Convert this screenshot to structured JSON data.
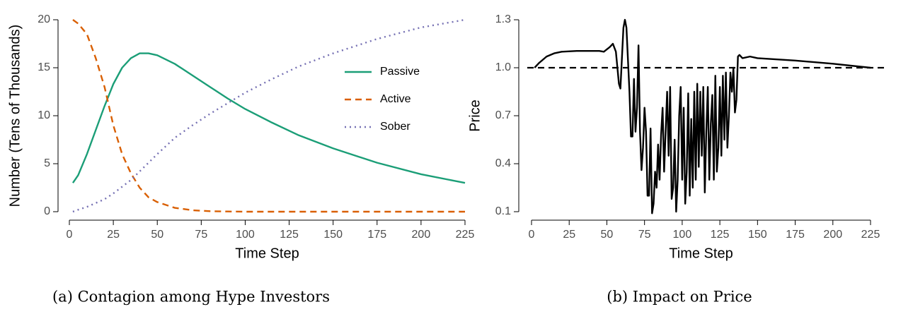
{
  "chart_data": [
    {
      "type": "line",
      "caption": "(a) Contagion among Hype Investors",
      "xlabel": "Time Step",
      "ylabel": "Number (Tens of Thousands)",
      "x": [
        2,
        5,
        10,
        15,
        20,
        25,
        30,
        35,
        40,
        45,
        50,
        60,
        70,
        80,
        90,
        100,
        115,
        130,
        150,
        175,
        200,
        225
      ],
      "series": [
        {
          "name": "Passive",
          "color": "#1b9e77",
          "dash": "solid",
          "values": [
            3,
            3.8,
            6,
            8.5,
            11,
            13.3,
            15,
            16,
            16.5,
            16.5,
            16.3,
            15.4,
            14.2,
            13,
            11.8,
            10.7,
            9.3,
            8,
            6.6,
            5.1,
            3.9,
            3
          ]
        },
        {
          "name": "Active",
          "color": "#d95f02",
          "dash": "dashed",
          "values": [
            20,
            19.6,
            18.5,
            16,
            13,
            9,
            6,
            4,
            2.5,
            1.5,
            1,
            0.4,
            0.15,
            0.05,
            0.02,
            0,
            0,
            0,
            0,
            0,
            0,
            0
          ]
        },
        {
          "name": "Sober",
          "color": "#7570b3",
          "dash": "dotted",
          "values": [
            0,
            0.2,
            0.5,
            0.9,
            1.3,
            1.9,
            2.6,
            3.3,
            4.2,
            5.1,
            6,
            7.7,
            9,
            10.2,
            11.3,
            12.4,
            13.8,
            15.1,
            16.5,
            18,
            19.2,
            20
          ]
        }
      ],
      "xlim": [
        0,
        225
      ],
      "xticks": [
        0,
        25,
        50,
        75,
        100,
        125,
        150,
        175,
        200,
        225
      ],
      "ylim": [
        0,
        20
      ],
      "yticks": [
        0,
        5,
        10,
        15,
        20
      ],
      "legend": "center-right"
    },
    {
      "type": "line",
      "caption": "(b) Impact on Price",
      "xlabel": "Time Step",
      "ylabel": "Price",
      "color": "#000000",
      "hline": 1,
      "x": [
        2,
        5,
        10,
        15,
        20,
        30,
        40,
        45,
        48,
        52,
        54,
        56,
        58,
        59,
        61,
        62,
        63,
        65,
        66,
        67,
        68,
        69,
        70,
        71,
        72,
        73,
        74,
        75,
        76,
        77,
        78,
        79,
        80,
        81,
        82,
        83,
        84,
        85,
        86,
        87,
        88,
        89,
        90,
        91,
        92,
        93,
        94,
        95,
        96,
        97,
        98,
        99,
        100,
        101,
        102,
        103,
        104,
        105,
        106,
        107,
        108,
        109,
        110,
        111,
        112,
        113,
        114,
        115,
        116,
        117,
        118,
        119,
        120,
        121,
        122,
        123,
        124,
        125,
        126,
        127,
        128,
        129,
        130,
        131,
        132,
        133,
        134,
        135,
        136,
        137,
        138,
        140,
        145,
        150,
        175,
        200,
        225
      ],
      "values": [
        1.0,
        1.03,
        1.07,
        1.09,
        1.1,
        1.105,
        1.105,
        1.105,
        1.1,
        1.13,
        1.15,
        1.1,
        0.9,
        0.87,
        1.25,
        1.3,
        1.25,
        0.85,
        0.57,
        0.57,
        0.93,
        0.6,
        0.75,
        1.14,
        0.6,
        0.36,
        0.5,
        0.75,
        0.6,
        0.2,
        0.2,
        0.62,
        0.09,
        0.15,
        0.35,
        0.25,
        0.52,
        0.3,
        0.58,
        0.75,
        0.35,
        0.6,
        0.85,
        0.45,
        0.88,
        0.18,
        0.25,
        0.55,
        0.1,
        0.3,
        0.7,
        0.88,
        0.3,
        0.75,
        0.15,
        0.35,
        0.84,
        0.2,
        0.68,
        0.25,
        0.85,
        0.3,
        0.9,
        0.38,
        0.85,
        0.45,
        0.88,
        0.22,
        0.6,
        0.88,
        0.3,
        0.65,
        0.83,
        0.3,
        0.95,
        0.35,
        0.5,
        0.88,
        0.45,
        0.95,
        0.55,
        0.97,
        0.5,
        0.7,
        0.97,
        0.85,
        1.0,
        0.72,
        0.8,
        1.07,
        1.08,
        1.06,
        1.07,
        1.06,
        1.045,
        1.025,
        1.0
      ],
      "xlim": [
        0,
        225
      ],
      "xticks": [
        0,
        25,
        50,
        75,
        100,
        125,
        150,
        175,
        200,
        225
      ],
      "ylim": [
        0.1,
        1.3
      ],
      "yticks": [
        0.1,
        0.4,
        0.7,
        {
          "value": 1,
          "label": "1.0"
        },
        1.3
      ]
    }
  ]
}
